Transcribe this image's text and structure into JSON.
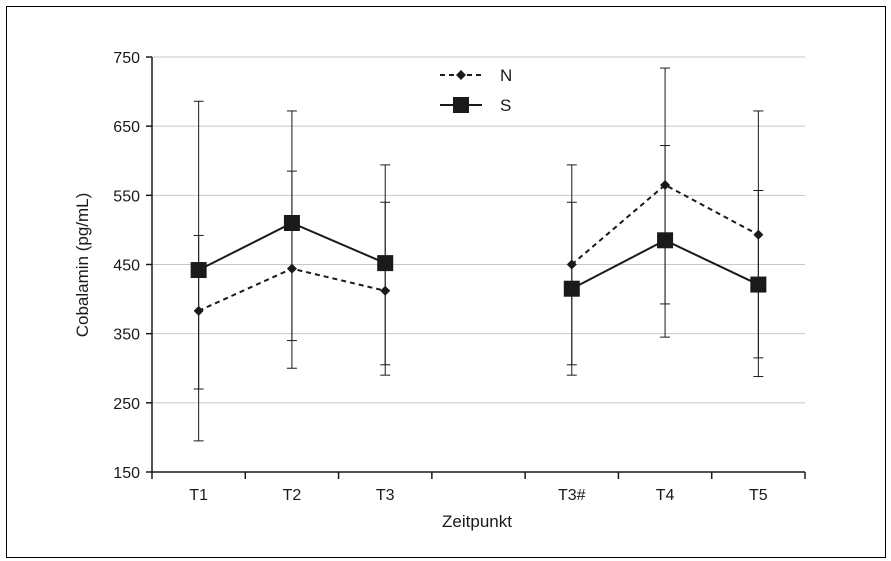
{
  "chart_data": {
    "type": "line",
    "title": "",
    "xlabel": "Zeitpunkt",
    "ylabel": "Cobalamin (pg/mL)",
    "ylim": [
      150,
      750
    ],
    "y_ticks": [
      "150",
      "250",
      "350",
      "450",
      "550",
      "650",
      "750"
    ],
    "y_tick_values": [
      150,
      250,
      350,
      450,
      550,
      650,
      750
    ],
    "categories": [
      "T1",
      "T2",
      "T3",
      "",
      "T3#",
      "T4",
      "T5"
    ],
    "grid": "horizontal",
    "legend_position": "top-center",
    "series": [
      {
        "name": "N",
        "style": "dashed",
        "marker": "diamond",
        "color": "#1a1a1a",
        "values": [
          383,
          444,
          412,
          null,
          450,
          565,
          493
        ],
        "err_low": [
          195,
          300,
          290,
          null,
          290,
          345,
          288
        ],
        "err_high": [
          492,
          585,
          540,
          null,
          540,
          622,
          557
        ]
      },
      {
        "name": "S",
        "style": "solid",
        "marker": "square",
        "color": "#1a1a1a",
        "values": [
          442,
          510,
          452,
          null,
          415,
          485,
          421
        ],
        "err_low": [
          270,
          340,
          305,
          null,
          305,
          393,
          315
        ],
        "err_high": [
          686,
          672,
          594,
          null,
          594,
          734,
          672
        ]
      }
    ]
  }
}
